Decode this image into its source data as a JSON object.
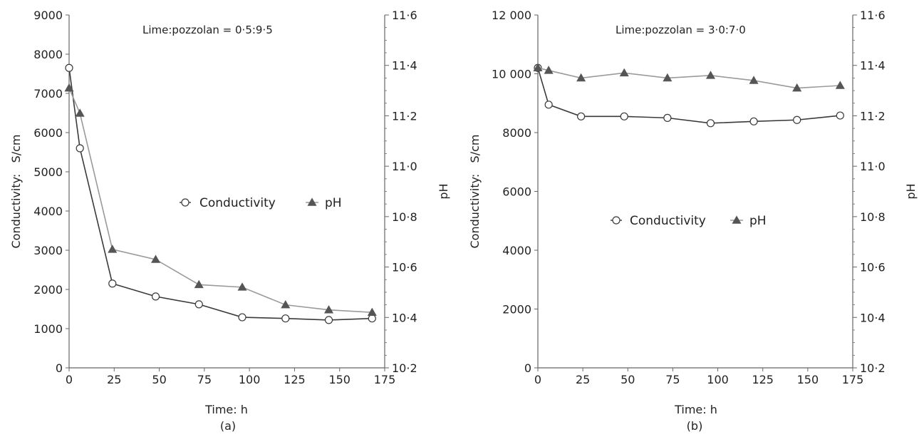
{
  "colors": {
    "conductivity": "#3a3a3a",
    "ph_line": "#9a9a9a",
    "ph_marker": "#555555",
    "axis": "#666666",
    "marker_fill": "#ffffff"
  },
  "chart_data": [
    {
      "type": "line",
      "subfigure_label": "(a)",
      "annotation": "Lime:pozzolan = 0·5:9·5",
      "xlabel": "Time: h",
      "ylabel": "Conductivity:   S/cm",
      "y2label": "pH",
      "xlim": [
        0,
        175
      ],
      "ylim": [
        0,
        9000
      ],
      "y2lim": [
        10.2,
        11.6
      ],
      "xticks": [
        0,
        25,
        50,
        75,
        100,
        125,
        150,
        175
      ],
      "xtick_labels": [
        "0",
        "25",
        "50",
        "75",
        "100",
        "125",
        "150",
        "175"
      ],
      "yticks": [
        0,
        1000,
        2000,
        3000,
        4000,
        5000,
        6000,
        7000,
        8000,
        9000
      ],
      "ytick_labels": [
        "0",
        "1000",
        "2000",
        "3000",
        "4000",
        "5000",
        "6000",
        "7000",
        "8000",
        "9000"
      ],
      "y2ticks": [
        10.2,
        10.4,
        10.6,
        10.8,
        11.0,
        11.2,
        11.4,
        11.6
      ],
      "y2tick_labels": [
        "10·2",
        "10·4",
        "10·6",
        "10·8",
        "11·0",
        "11·2",
        "11·4",
        "11·6"
      ],
      "grid": false,
      "legend": {
        "position": "center-right",
        "entries": [
          "Conductivity",
          "pH"
        ]
      },
      "series": [
        {
          "name": "Conductivity",
          "axis": "left",
          "marker": "circle",
          "x": [
            0,
            6,
            24,
            48,
            72,
            96,
            120,
            144,
            168
          ],
          "y": [
            7650,
            5600,
            2150,
            1820,
            1620,
            1290,
            1260,
            1220,
            1260
          ]
        },
        {
          "name": "pH",
          "axis": "right",
          "marker": "triangle",
          "x": [
            0,
            6,
            24,
            48,
            72,
            96,
            120,
            144,
            168
          ],
          "y": [
            11.31,
            11.21,
            10.67,
            10.63,
            10.53,
            10.52,
            10.45,
            10.43,
            10.42
          ]
        }
      ]
    },
    {
      "type": "line",
      "subfigure_label": "(b)",
      "annotation": "Lime:pozzolan = 3·0:7·0",
      "xlabel": "Time: h",
      "ylabel": "Conductivity:   S/cm",
      "y2label": "pH",
      "xlim": [
        0,
        175
      ],
      "ylim": [
        0,
        12000
      ],
      "y2lim": [
        10.2,
        11.6
      ],
      "xticks": [
        0,
        25,
        50,
        75,
        100,
        125,
        150,
        175
      ],
      "xtick_labels": [
        "0",
        "25",
        "50",
        "75",
        "100",
        "125",
        "150",
        "175"
      ],
      "yticks": [
        0,
        2000,
        4000,
        6000,
        8000,
        10000,
        12000
      ],
      "ytick_labels": [
        "0",
        "2000",
        "4000",
        "6000",
        "8000",
        "10 000",
        "12 000"
      ],
      "y2ticks": [
        10.2,
        10.4,
        10.6,
        10.8,
        11.0,
        11.2,
        11.4,
        11.6
      ],
      "y2tick_labels": [
        "10·2",
        "10·4",
        "10·6",
        "10·8",
        "11·0",
        "11·2",
        "11·4",
        "11·6"
      ],
      "grid": false,
      "legend": {
        "position": "center",
        "entries": [
          "Conductivity",
          "pH"
        ]
      },
      "series": [
        {
          "name": "Conductivity",
          "axis": "left",
          "marker": "circle",
          "x": [
            0,
            6,
            24,
            48,
            72,
            96,
            120,
            144,
            168
          ],
          "y": [
            10200,
            8950,
            8550,
            8550,
            8500,
            8320,
            8380,
            8430,
            8580
          ]
        },
        {
          "name": "pH",
          "axis": "right",
          "marker": "triangle",
          "x": [
            0,
            6,
            24,
            48,
            72,
            96,
            120,
            144,
            168
          ],
          "y": [
            11.39,
            11.38,
            11.35,
            11.37,
            11.35,
            11.36,
            11.34,
            11.31,
            11.32
          ]
        }
      ]
    }
  ]
}
